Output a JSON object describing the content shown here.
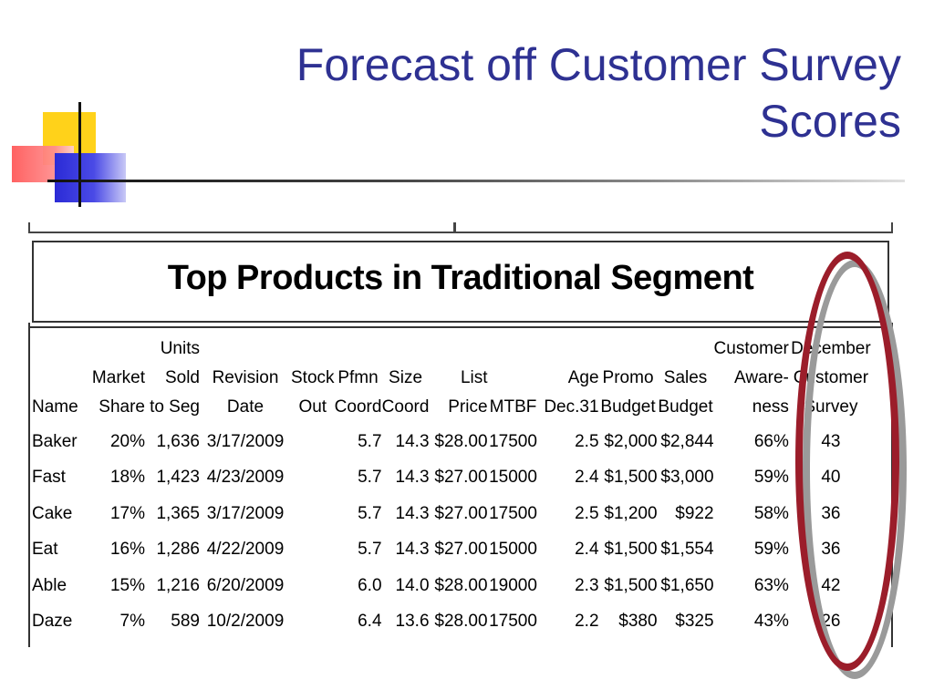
{
  "slide": {
    "title_line1": "Forecast off Customer Survey",
    "title_line2": "Scores"
  },
  "report": {
    "title": "Top Products in Traditional Segment",
    "columns": [
      [
        "",
        "",
        "Name"
      ],
      [
        "",
        "Market",
        "Share"
      ],
      [
        "Units",
        "Sold",
        "to Seg"
      ],
      [
        "",
        "Revision",
        "Date"
      ],
      [
        "",
        "Stock",
        "Out"
      ],
      [
        "",
        "Pfmn",
        "Coord"
      ],
      [
        "",
        "Size",
        "Coord"
      ],
      [
        "",
        "List",
        "Price"
      ],
      [
        "",
        "",
        "MTBF"
      ],
      [
        "",
        "Age",
        "Dec.31"
      ],
      [
        "",
        "Promo",
        "Budget"
      ],
      [
        "",
        "Sales",
        "Budget"
      ],
      [
        "Customer",
        "Aware-",
        "ness"
      ],
      [
        "December",
        "Customer",
        "Survey"
      ]
    ],
    "rows": [
      [
        "Baker",
        "20%",
        "1,636",
        "3/17/2009",
        "",
        "5.7",
        "14.3",
        "$28.00",
        "17500",
        "2.5",
        "$2,000",
        "$2,844",
        "66%",
        "43"
      ],
      [
        "Fast",
        "18%",
        "1,423",
        "4/23/2009",
        "",
        "5.7",
        "14.3",
        "$27.00",
        "15000",
        "2.4",
        "$1,500",
        "$3,000",
        "59%",
        "40"
      ],
      [
        "Cake",
        "17%",
        "1,365",
        "3/17/2009",
        "",
        "5.7",
        "14.3",
        "$27.00",
        "17500",
        "2.5",
        "$1,200",
        "$922",
        "58%",
        "36"
      ],
      [
        "Eat",
        "16%",
        "1,286",
        "4/22/2009",
        "",
        "5.7",
        "14.3",
        "$27.00",
        "15000",
        "2.4",
        "$1,500",
        "$1,554",
        "59%",
        "36"
      ],
      [
        "Able",
        "15%",
        "1,216",
        "6/20/2009",
        "",
        "6.0",
        "14.0",
        "$28.00",
        "19000",
        "2.3",
        "$1,500",
        "$1,650",
        "63%",
        "42"
      ],
      [
        "Daze",
        "7%",
        "589",
        "10/2/2009",
        "",
        "6.4",
        "13.6",
        "$28.00",
        "17500",
        "2.2",
        "$380",
        "$325",
        "43%",
        "26"
      ]
    ]
  },
  "colors": {
    "title": "#2e3192",
    "highlight_ellipse": "#9b1d2a",
    "ellipse_shadow": "#9a9a9a"
  }
}
